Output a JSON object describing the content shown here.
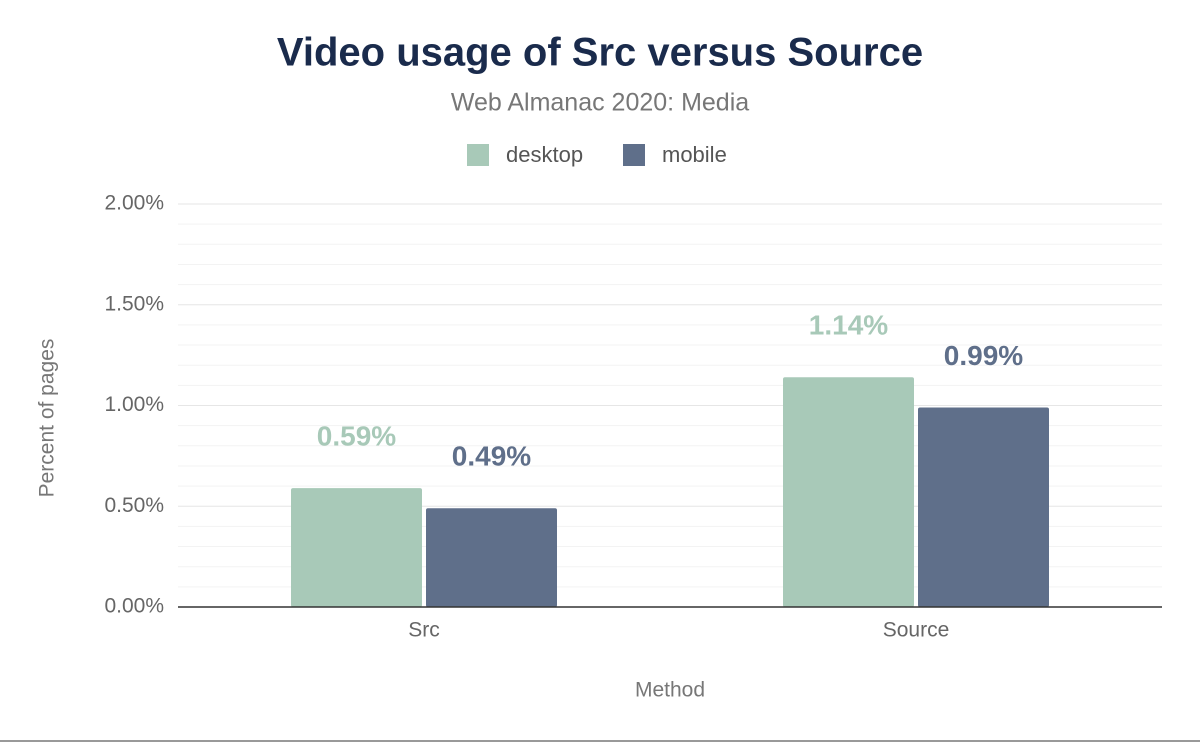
{
  "chart_data": {
    "type": "bar",
    "title": "Video usage of Src versus Source",
    "subtitle": "Web Almanac 2020: Media",
    "x_label": "Method",
    "y_label": "Percent of pages",
    "categories": [
      "Src",
      "Source"
    ],
    "series": [
      {
        "name": "desktop",
        "color": "#a8c9b8",
        "values": [
          0.59,
          1.14
        ],
        "value_labels": [
          "0.59%",
          "1.14%"
        ]
      },
      {
        "name": "mobile",
        "color": "#5f6f8a",
        "values": [
          0.49,
          0.99
        ],
        "value_labels": [
          "0.49%",
          "0.99%"
        ]
      }
    ],
    "ylim": [
      0,
      2
    ],
    "yticks": [
      {
        "value": 0,
        "label": "0.00%"
      },
      {
        "value": 0.5,
        "label": "0.50%"
      },
      {
        "value": 1,
        "label": "1.00%"
      },
      {
        "value": 1.5,
        "label": "1.50%"
      },
      {
        "value": 2,
        "label": "2.00%"
      }
    ],
    "minor_yticks": [
      0.1,
      0.2,
      0.3,
      0.4,
      0.6,
      0.7,
      0.8,
      0.9,
      1.1,
      1.2,
      1.3,
      1.4,
      1.6,
      1.7,
      1.8,
      1.9
    ],
    "grid": true,
    "legend": "top"
  }
}
